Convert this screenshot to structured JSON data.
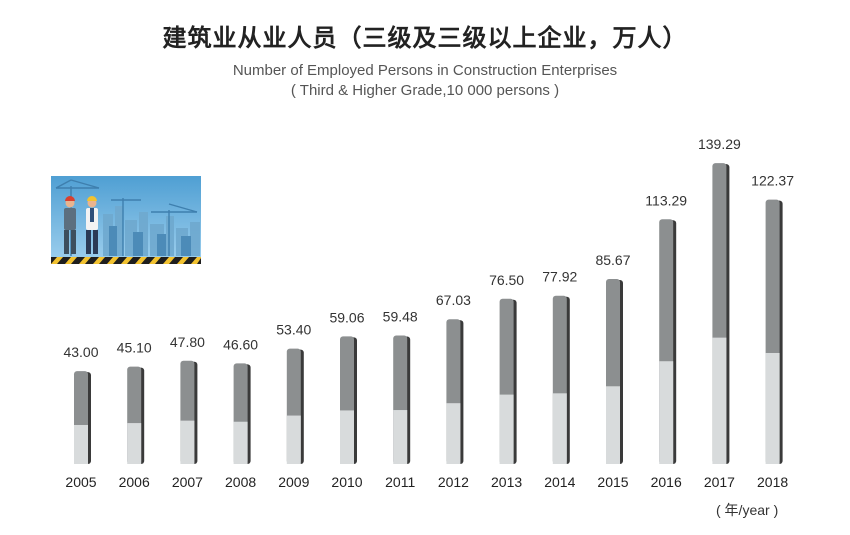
{
  "title_cn": "建筑业从业人员（三级及三级以上企业，万人）",
  "title_en": "Number of Employed Persons in Construction Enterprises",
  "subtitle_en": "( Third & Higher Grade,10 000 persons )",
  "unit_label": "( 年/year )",
  "colors": {
    "bar_dark": "#8c8f90",
    "bar_light": "#d8dbdc",
    "bar_shadow": "#3a3a3a",
    "sky": "#5aa6d6",
    "sky_light": "#a9d4ef"
  },
  "chart_data": {
    "type": "bar",
    "title": "建筑业从业人员（三级及三级以上企业，万人）",
    "categories": [
      "2005",
      "2006",
      "2007",
      "2008",
      "2009",
      "2010",
      "2011",
      "2012",
      "2013",
      "2014",
      "2015",
      "2016",
      "2017",
      "2018"
    ],
    "values": [
      43.0,
      45.1,
      47.8,
      46.6,
      53.4,
      59.06,
      59.48,
      67.03,
      76.5,
      77.92,
      85.67,
      113.29,
      139.29,
      122.37
    ],
    "value_labels": [
      "43.00",
      "45.10",
      "47.80",
      "46.60",
      "53.40",
      "59.06",
      "59.48",
      "67.03",
      "76.50",
      "77.92",
      "85.67",
      "113.29",
      "139.29",
      "122.37"
    ],
    "xlabel": "( 年/year )",
    "ylabel": "",
    "ylim": [
      0,
      140
    ],
    "grid": false,
    "legend": "none"
  }
}
